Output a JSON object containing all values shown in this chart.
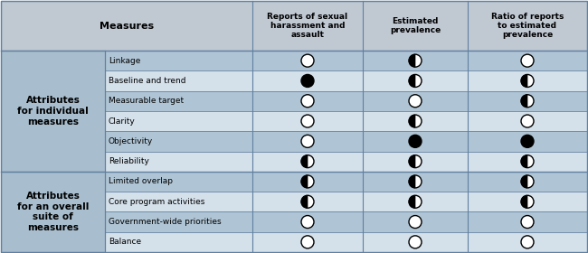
{
  "col_headers": [
    "Reports of sexual\nharassment and\nassault",
    "Estimated\nprevalence",
    "Ratio of reports\nto estimated\nprevalence"
  ],
  "row_group1_label": "Attributes\nfor individual\nmeasures",
  "row_group2_label": "Attributes\nfor an overall\nsuite of\nmeasures",
  "rows": [
    [
      "Linkage",
      "O",
      "H",
      "O"
    ],
    [
      "Baseline and trend",
      "F",
      "H",
      "H"
    ],
    [
      "Measurable target",
      "O",
      "O",
      "H"
    ],
    [
      "Clarity",
      "O",
      "H",
      "O"
    ],
    [
      "Objectivity",
      "O",
      "F",
      "F"
    ],
    [
      "Reliability",
      "H",
      "H",
      "H"
    ],
    [
      "Limited overlap",
      "H",
      "H",
      "H"
    ],
    [
      "Core program activities",
      "H",
      "H",
      "H"
    ],
    [
      "Government-wide priorities",
      "O",
      "O",
      "O"
    ],
    [
      "Balance",
      "O",
      "O",
      "O"
    ]
  ],
  "group1_rows": 6,
  "group2_rows": 4,
  "header_bg": "#c0c8d2",
  "group1_bg": "#a8bece",
  "group2_bg": "#a8bece",
  "row_dark_bg": "#afc4d4",
  "row_light_bg": "#d4e0ea",
  "border_color": "#6080a0",
  "fig_bg": "#ffffff",
  "figsize": [
    6.5,
    2.8
  ],
  "dpi": 100
}
